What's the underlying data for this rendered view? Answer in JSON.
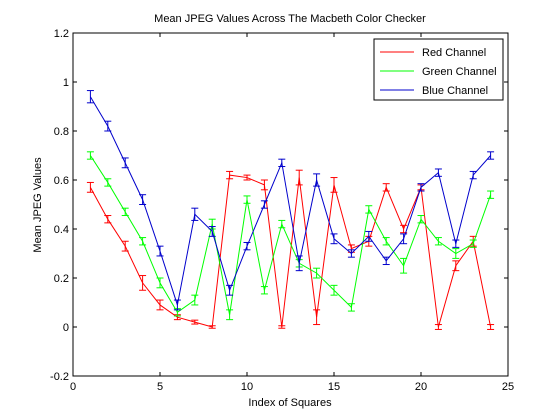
{
  "chart_data": {
    "type": "line",
    "title": "Mean JPEG Values Across The Macbeth Color Checker",
    "xlabel": "Index of Squares",
    "ylabel": "Mean JPEG Values",
    "xlim": [
      0,
      25
    ],
    "ylim": [
      -0.2,
      1.2
    ],
    "x_ticks": [
      0,
      5,
      10,
      15,
      20,
      25
    ],
    "y_ticks": [
      -0.2,
      0,
      0.2,
      0.4,
      0.6,
      0.8,
      1,
      1.2
    ],
    "x_tick_labels": [
      "0",
      "5",
      "10",
      "15",
      "20",
      "25"
    ],
    "y_tick_labels": [
      "-0.2",
      "0",
      "0.2",
      "0.4",
      "0.6",
      "0.8",
      "1",
      "1.2"
    ],
    "legend_position": "top-right",
    "grid": false,
    "error_bars": true,
    "x": [
      1,
      2,
      3,
      4,
      5,
      6,
      7,
      8,
      9,
      10,
      11,
      12,
      13,
      14,
      15,
      16,
      17,
      18,
      19,
      20,
      21,
      22,
      23,
      24
    ],
    "series": [
      {
        "name": "Red Channel",
        "color": "#ff0000",
        "values": [
          0.57,
          0.44,
          0.33,
          0.18,
          0.09,
          0.04,
          0.02,
          0.0,
          0.62,
          0.61,
          0.58,
          0.0,
          0.61,
          0.04,
          0.58,
          0.32,
          0.35,
          0.57,
          0.4,
          0.57,
          0.0,
          0.25,
          0.35,
          0.0
        ],
        "errors": [
          0.02,
          0.015,
          0.02,
          0.03,
          0.02,
          0.01,
          0.008,
          0.005,
          0.015,
          0.01,
          0.02,
          0.005,
          0.03,
          0.03,
          0.03,
          0.015,
          0.02,
          0.015,
          0.015,
          0.01,
          0.01,
          0.02,
          0.02,
          0.01
        ]
      },
      {
        "name": "Green Channel",
        "color": "#00ff00",
        "values": [
          0.7,
          0.59,
          0.47,
          0.35,
          0.18,
          0.06,
          0.11,
          0.42,
          0.05,
          0.52,
          0.15,
          0.42,
          0.26,
          0.22,
          0.15,
          0.08,
          0.48,
          0.35,
          0.25,
          0.44,
          0.35,
          0.3,
          0.34,
          0.54
        ],
        "errors": [
          0.015,
          0.015,
          0.015,
          0.015,
          0.02,
          0.015,
          0.02,
          0.02,
          0.02,
          0.015,
          0.015,
          0.015,
          0.015,
          0.02,
          0.02,
          0.015,
          0.015,
          0.015,
          0.03,
          0.015,
          0.015,
          0.02,
          0.015,
          0.015
        ]
      },
      {
        "name": "Blue Channel",
        "color": "#0000cc",
        "values": [
          0.94,
          0.82,
          0.67,
          0.52,
          0.31,
          0.09,
          0.46,
          0.39,
          0.15,
          0.33,
          0.5,
          0.67,
          0.26,
          0.6,
          0.36,
          0.3,
          0.37,
          0.27,
          0.36,
          0.57,
          0.63,
          0.34,
          0.62,
          0.7
        ],
        "errors": [
          0.025,
          0.02,
          0.02,
          0.02,
          0.02,
          0.02,
          0.025,
          0.02,
          0.02,
          0.015,
          0.015,
          0.015,
          0.03,
          0.025,
          0.02,
          0.015,
          0.02,
          0.015,
          0.02,
          0.015,
          0.015,
          0.015,
          0.015,
          0.015
        ]
      }
    ]
  }
}
